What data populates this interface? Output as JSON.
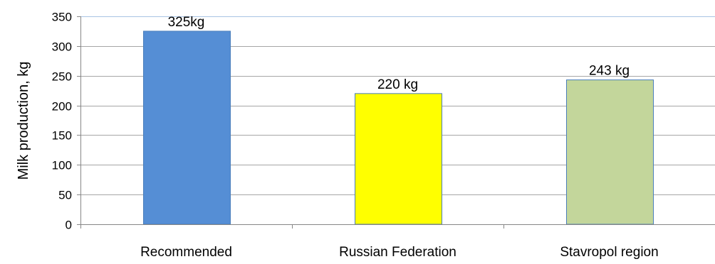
{
  "chart_data": {
    "type": "bar",
    "title": "",
    "xlabel": "",
    "ylabel": "Milk production, kg",
    "categories": [
      "Recommended",
      "Russian Federation",
      "Stavropol region"
    ],
    "values": [
      325,
      220,
      243
    ],
    "data_labels": [
      "325kg",
      "220 kg",
      "243 kg"
    ],
    "bar_colors": [
      "#558ed5",
      "#ffff00",
      "#c3d69b"
    ],
    "bar_border_colors": [
      "#4a7ebb",
      "#4a7ebb",
      "#4a7ebb"
    ],
    "ylim": [
      0,
      350
    ],
    "yticks": [
      "0",
      "50",
      "100",
      "150",
      "200",
      "250",
      "300",
      "350"
    ],
    "grid": true,
    "grid_color": "#a6a6a6",
    "top_line_color": "#a9c4e4",
    "legend": "none"
  }
}
